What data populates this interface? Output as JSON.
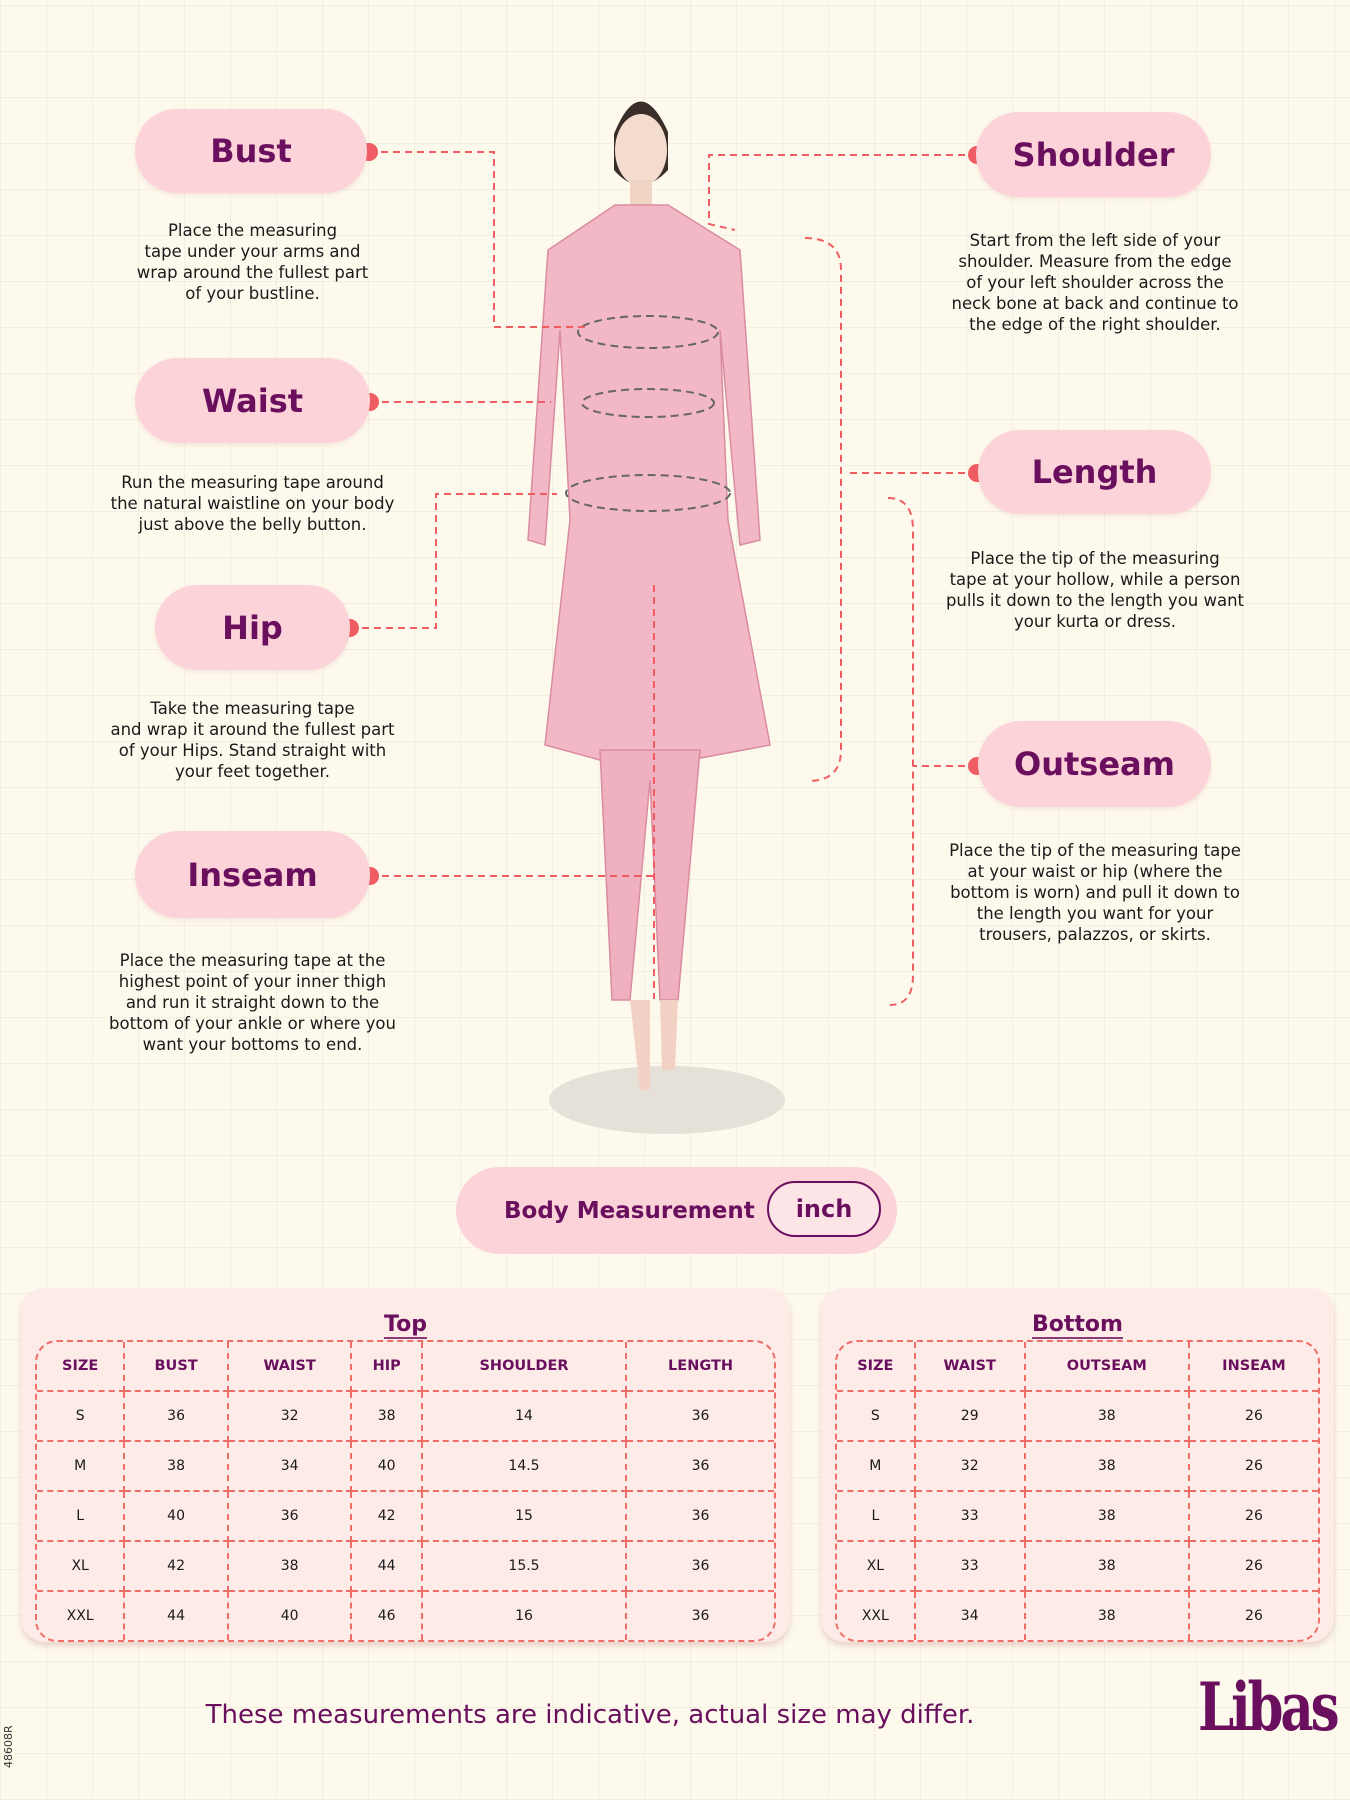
{
  "measurements": {
    "bust": {
      "title": "Bust",
      "desc": "Place the measuring\ntape under your arms and\nwrap around the fullest part\nof your bustline."
    },
    "shoulder": {
      "title": "Shoulder",
      "desc": "Start from the left side of your\nshoulder. Measure from the edge\nof your left shoulder across the\nneck bone at back and continue to\nthe edge of the right shoulder."
    },
    "waist": {
      "title": "Waist",
      "desc": "Run the measuring tape around\nthe natural waistline on your body\njust above the belly button."
    },
    "length": {
      "title": "Length",
      "desc": "Place the tip of the measuring\ntape at your hollow, while a person\npulls it down to the length you want\nyour kurta or dress."
    },
    "hip": {
      "title": "Hip",
      "desc": "Take the measuring tape\nand wrap it around the fullest part\nof your Hips. Stand straight with\nyour feet together."
    },
    "outseam": {
      "title": "Outseam",
      "desc": "Place the tip of the measuring tape\nat your waist or hip (where the\nbottom is worn) and pull it down to\nthe length you want for your\ntrousers, palazzos, or skirts."
    },
    "inseam": {
      "title": "Inseam",
      "desc": "Place the measuring tape at the\nhighest point of your inner thigh\nand run it straight down to the\nbottom of your ankle or where you\nwant your bottoms to end."
    }
  },
  "body_measurement": {
    "label": "Body Measurement",
    "unit": "inch"
  },
  "top_table": {
    "title": "Top",
    "headers": [
      "SIZE",
      "BUST",
      "WAIST",
      "HIP",
      "SHOULDER",
      "LENGTH"
    ],
    "rows": [
      [
        "S",
        "36",
        "32",
        "38",
        "14",
        "36"
      ],
      [
        "M",
        "38",
        "34",
        "40",
        "14.5",
        "36"
      ],
      [
        "L",
        "40",
        "36",
        "42",
        "15",
        "36"
      ],
      [
        "XL",
        "42",
        "38",
        "44",
        "15.5",
        "36"
      ],
      [
        "XXL",
        "44",
        "40",
        "46",
        "16",
        "36"
      ]
    ]
  },
  "bottom_table": {
    "title": "Bottom",
    "headers": [
      "SIZE",
      "WAIST",
      "OUTSEAM",
      "INSEAM"
    ],
    "rows": [
      [
        "S",
        "29",
        "38",
        "26"
      ],
      [
        "M",
        "32",
        "38",
        "26"
      ],
      [
        "L",
        "33",
        "38",
        "26"
      ],
      [
        "XL",
        "33",
        "38",
        "26"
      ],
      [
        "XXL",
        "34",
        "38",
        "26"
      ]
    ]
  },
  "footer": "These measurements are indicative, actual size may differ.",
  "brand": "Libas",
  "product_code": "48608R",
  "colors": {
    "accent": "#6a0f5e",
    "pill": "#fbd3d8",
    "dash": "#ee6f6a",
    "background": "#fdf9ec"
  }
}
